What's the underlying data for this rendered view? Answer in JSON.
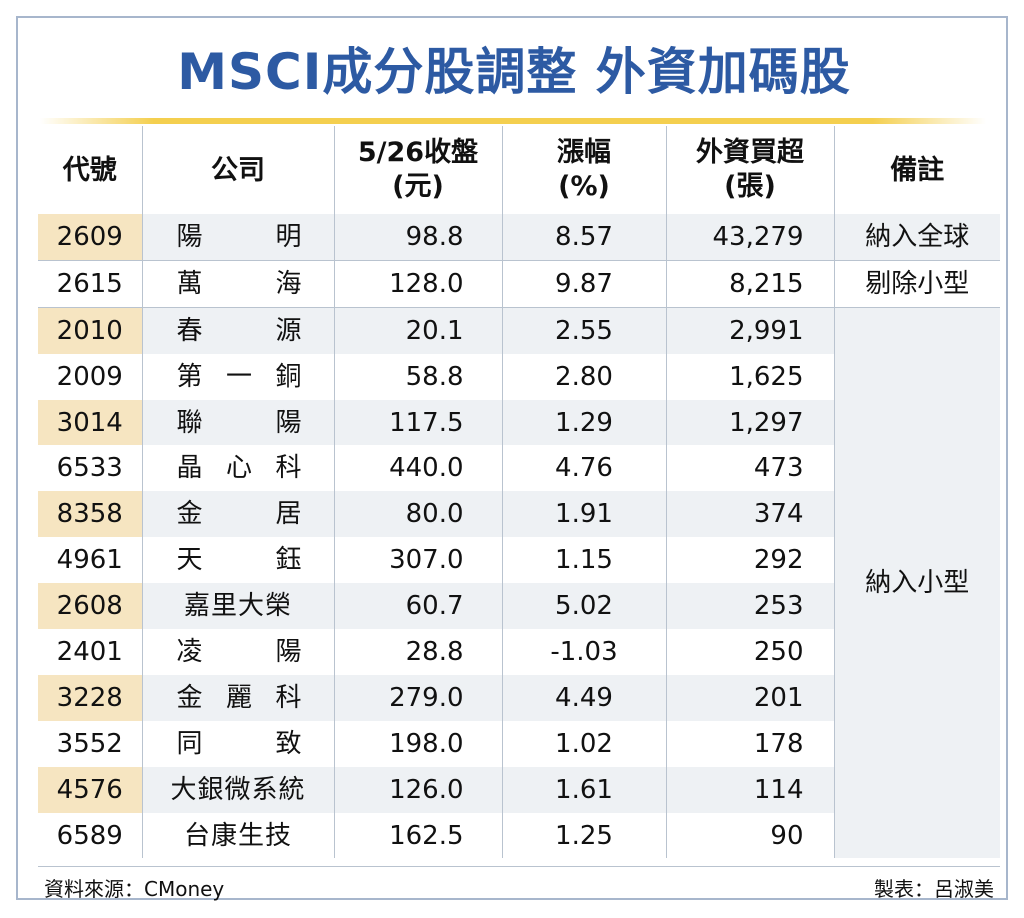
{
  "title": "MSCI成分股調整  外資加碼股",
  "headers": {
    "code": "代號",
    "company": "公司",
    "close_line1": "5/26收盤",
    "close_line2": "(元)",
    "change_line1": "漲幅",
    "change_line2": "(%)",
    "buy_line1": "外資買超",
    "buy_line2": "(張)",
    "note": "備註"
  },
  "rows": [
    {
      "code": "2609",
      "name": [
        "陽",
        "明"
      ],
      "close": "98.8",
      "change": "8.57",
      "buy": "43,279",
      "note": "納入全球"
    },
    {
      "code": "2615",
      "name": [
        "萬",
        "海"
      ],
      "close": "128.0",
      "change": "9.87",
      "buy": "8,215",
      "note": "剔除小型"
    },
    {
      "code": "2010",
      "name": [
        "春",
        "源"
      ],
      "close": "20.1",
      "change": "2.55",
      "buy": "2,991"
    },
    {
      "code": "2009",
      "name": [
        "第",
        "一",
        "銅"
      ],
      "close": "58.8",
      "change": "2.80",
      "buy": "1,625"
    },
    {
      "code": "3014",
      "name": [
        "聯",
        "陽"
      ],
      "close": "117.5",
      "change": "1.29",
      "buy": "1,297"
    },
    {
      "code": "6533",
      "name": [
        "晶",
        "心",
        "科"
      ],
      "close": "440.0",
      "change": "4.76",
      "buy": "473"
    },
    {
      "code": "8358",
      "name": [
        "金",
        "居"
      ],
      "close": "80.0",
      "change": "1.91",
      "buy": "374"
    },
    {
      "code": "4961",
      "name": [
        "天",
        "鈺"
      ],
      "close": "307.0",
      "change": "1.15",
      "buy": "292"
    },
    {
      "code": "2608",
      "name": [
        "嘉里大榮"
      ],
      "close": "60.7",
      "change": "5.02",
      "buy": "253"
    },
    {
      "code": "2401",
      "name": [
        "凌",
        "陽"
      ],
      "close": "28.8",
      "change": "-1.03",
      "buy": "250"
    },
    {
      "code": "3228",
      "name": [
        "金",
        "麗",
        "科"
      ],
      "close": "279.0",
      "change": "4.49",
      "buy": "201"
    },
    {
      "code": "3552",
      "name": [
        "同",
        "致"
      ],
      "close": "198.0",
      "change": "1.02",
      "buy": "178"
    },
    {
      "code": "4576",
      "name": [
        "大銀微系統"
      ],
      "close": "126.0",
      "change": "1.61",
      "buy": "114"
    },
    {
      "code": "6589",
      "name": [
        "台康生技"
      ],
      "close": "162.5",
      "change": "1.25",
      "buy": "90"
    }
  ],
  "group_note": "納入小型",
  "footer": {
    "source": "資料來源：CMoney",
    "maker": "製表：呂淑美"
  }
}
